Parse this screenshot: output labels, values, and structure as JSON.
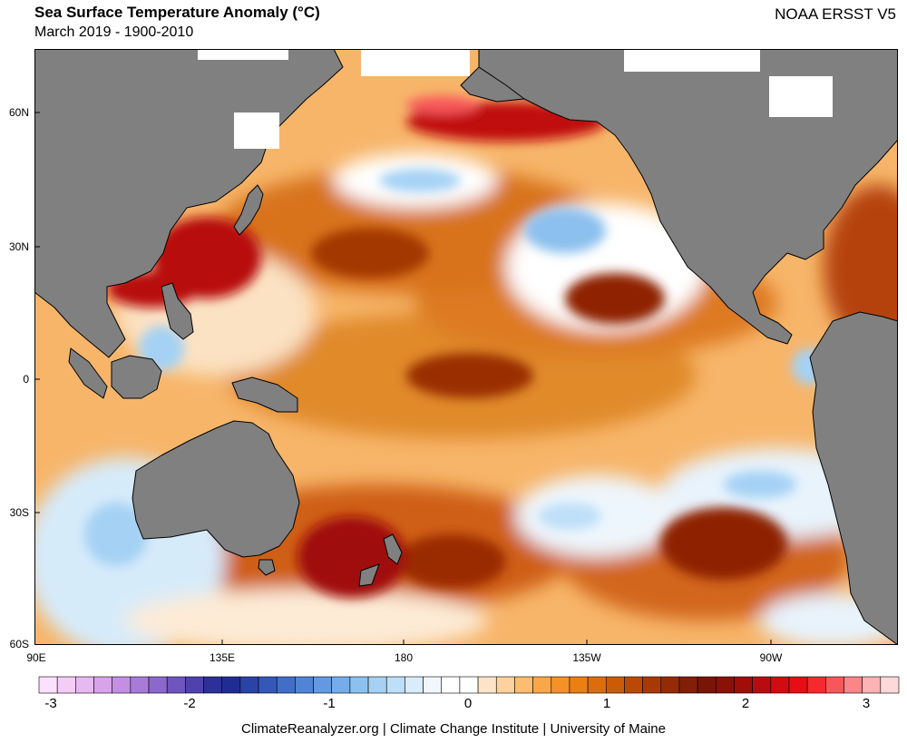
{
  "header": {
    "title": "Sea Surface Temperature Anomaly (°C)",
    "subtitle": "March 2019 - 1900-2010",
    "dataset": "NOAA ERSST V5"
  },
  "axes": {
    "lat_labels": [
      "60N",
      "30N",
      "0",
      "30S",
      "60S"
    ],
    "lon_labels": [
      "90E",
      "135E",
      "180",
      "135W",
      "90W"
    ]
  },
  "colorbar": {
    "tick_labels": [
      "-3",
      "-2",
      "-1",
      "0",
      "1",
      "2",
      "3"
    ],
    "colors": [
      "#fde0fd",
      "#f4cdf7",
      "#e8b8f1",
      "#d9a3eb",
      "#c48fe3",
      "#a97bd8",
      "#8d68cc",
      "#6f55be",
      "#4f42ad",
      "#2e2f99",
      "#1f2d92",
      "#2a43a6",
      "#3558b8",
      "#426ec8",
      "#5284d6",
      "#6399e0",
      "#76ade8",
      "#8cc0ee",
      "#a4d1f4",
      "#bedff8",
      "#d9ecfb",
      "#f1f7fd",
      "#ffffff",
      "#ffffff",
      "#fde4c9",
      "#fdd29f",
      "#fbbd72",
      "#f9a748",
      "#f59226",
      "#ec7f12",
      "#dd6d0c",
      "#cc5b08",
      "#bb4906",
      "#a83906",
      "#952b06",
      "#831f06",
      "#7a1506",
      "#8a1106",
      "#a00e0a",
      "#b80d0f",
      "#d00c12",
      "#e70d16",
      "#f42a2f",
      "#f8575a",
      "#fb8587",
      "#fdb2b3",
      "#fed9d9"
    ]
  },
  "credit": "ClimateReanalyzer.org | Climate Change Institute | University of Maine"
}
